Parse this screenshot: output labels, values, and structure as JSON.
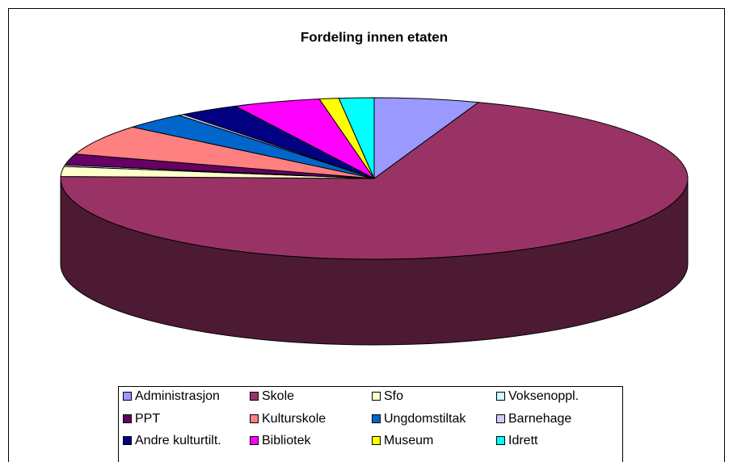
{
  "chart_data": {
    "type": "pie3d",
    "title": "Fordeling innen etaten",
    "categories": [
      "Administrasjon",
      "Skole",
      "Sfo",
      "Voksenoppl.",
      "PPT",
      "Kulturskole",
      "Ungdomstiltak",
      "Barnehage",
      "Andre kulturtilt.",
      "Bibliotek",
      "Museum",
      "Idrett"
    ],
    "values": [
      5.4,
      70,
      2,
      0.3,
      2.2,
      6.1,
      3.3,
      0.3,
      3.1,
      4.5,
      1,
      1.8
    ],
    "colors": [
      "#9999ff",
      "#993366",
      "#ffffcc",
      "#ccffff",
      "#660066",
      "#ff8080",
      "#0066cc",
      "#ccccff",
      "#000080",
      "#ff00ff",
      "#ffff00",
      "#00ffff"
    ],
    "legend": "bottom"
  }
}
